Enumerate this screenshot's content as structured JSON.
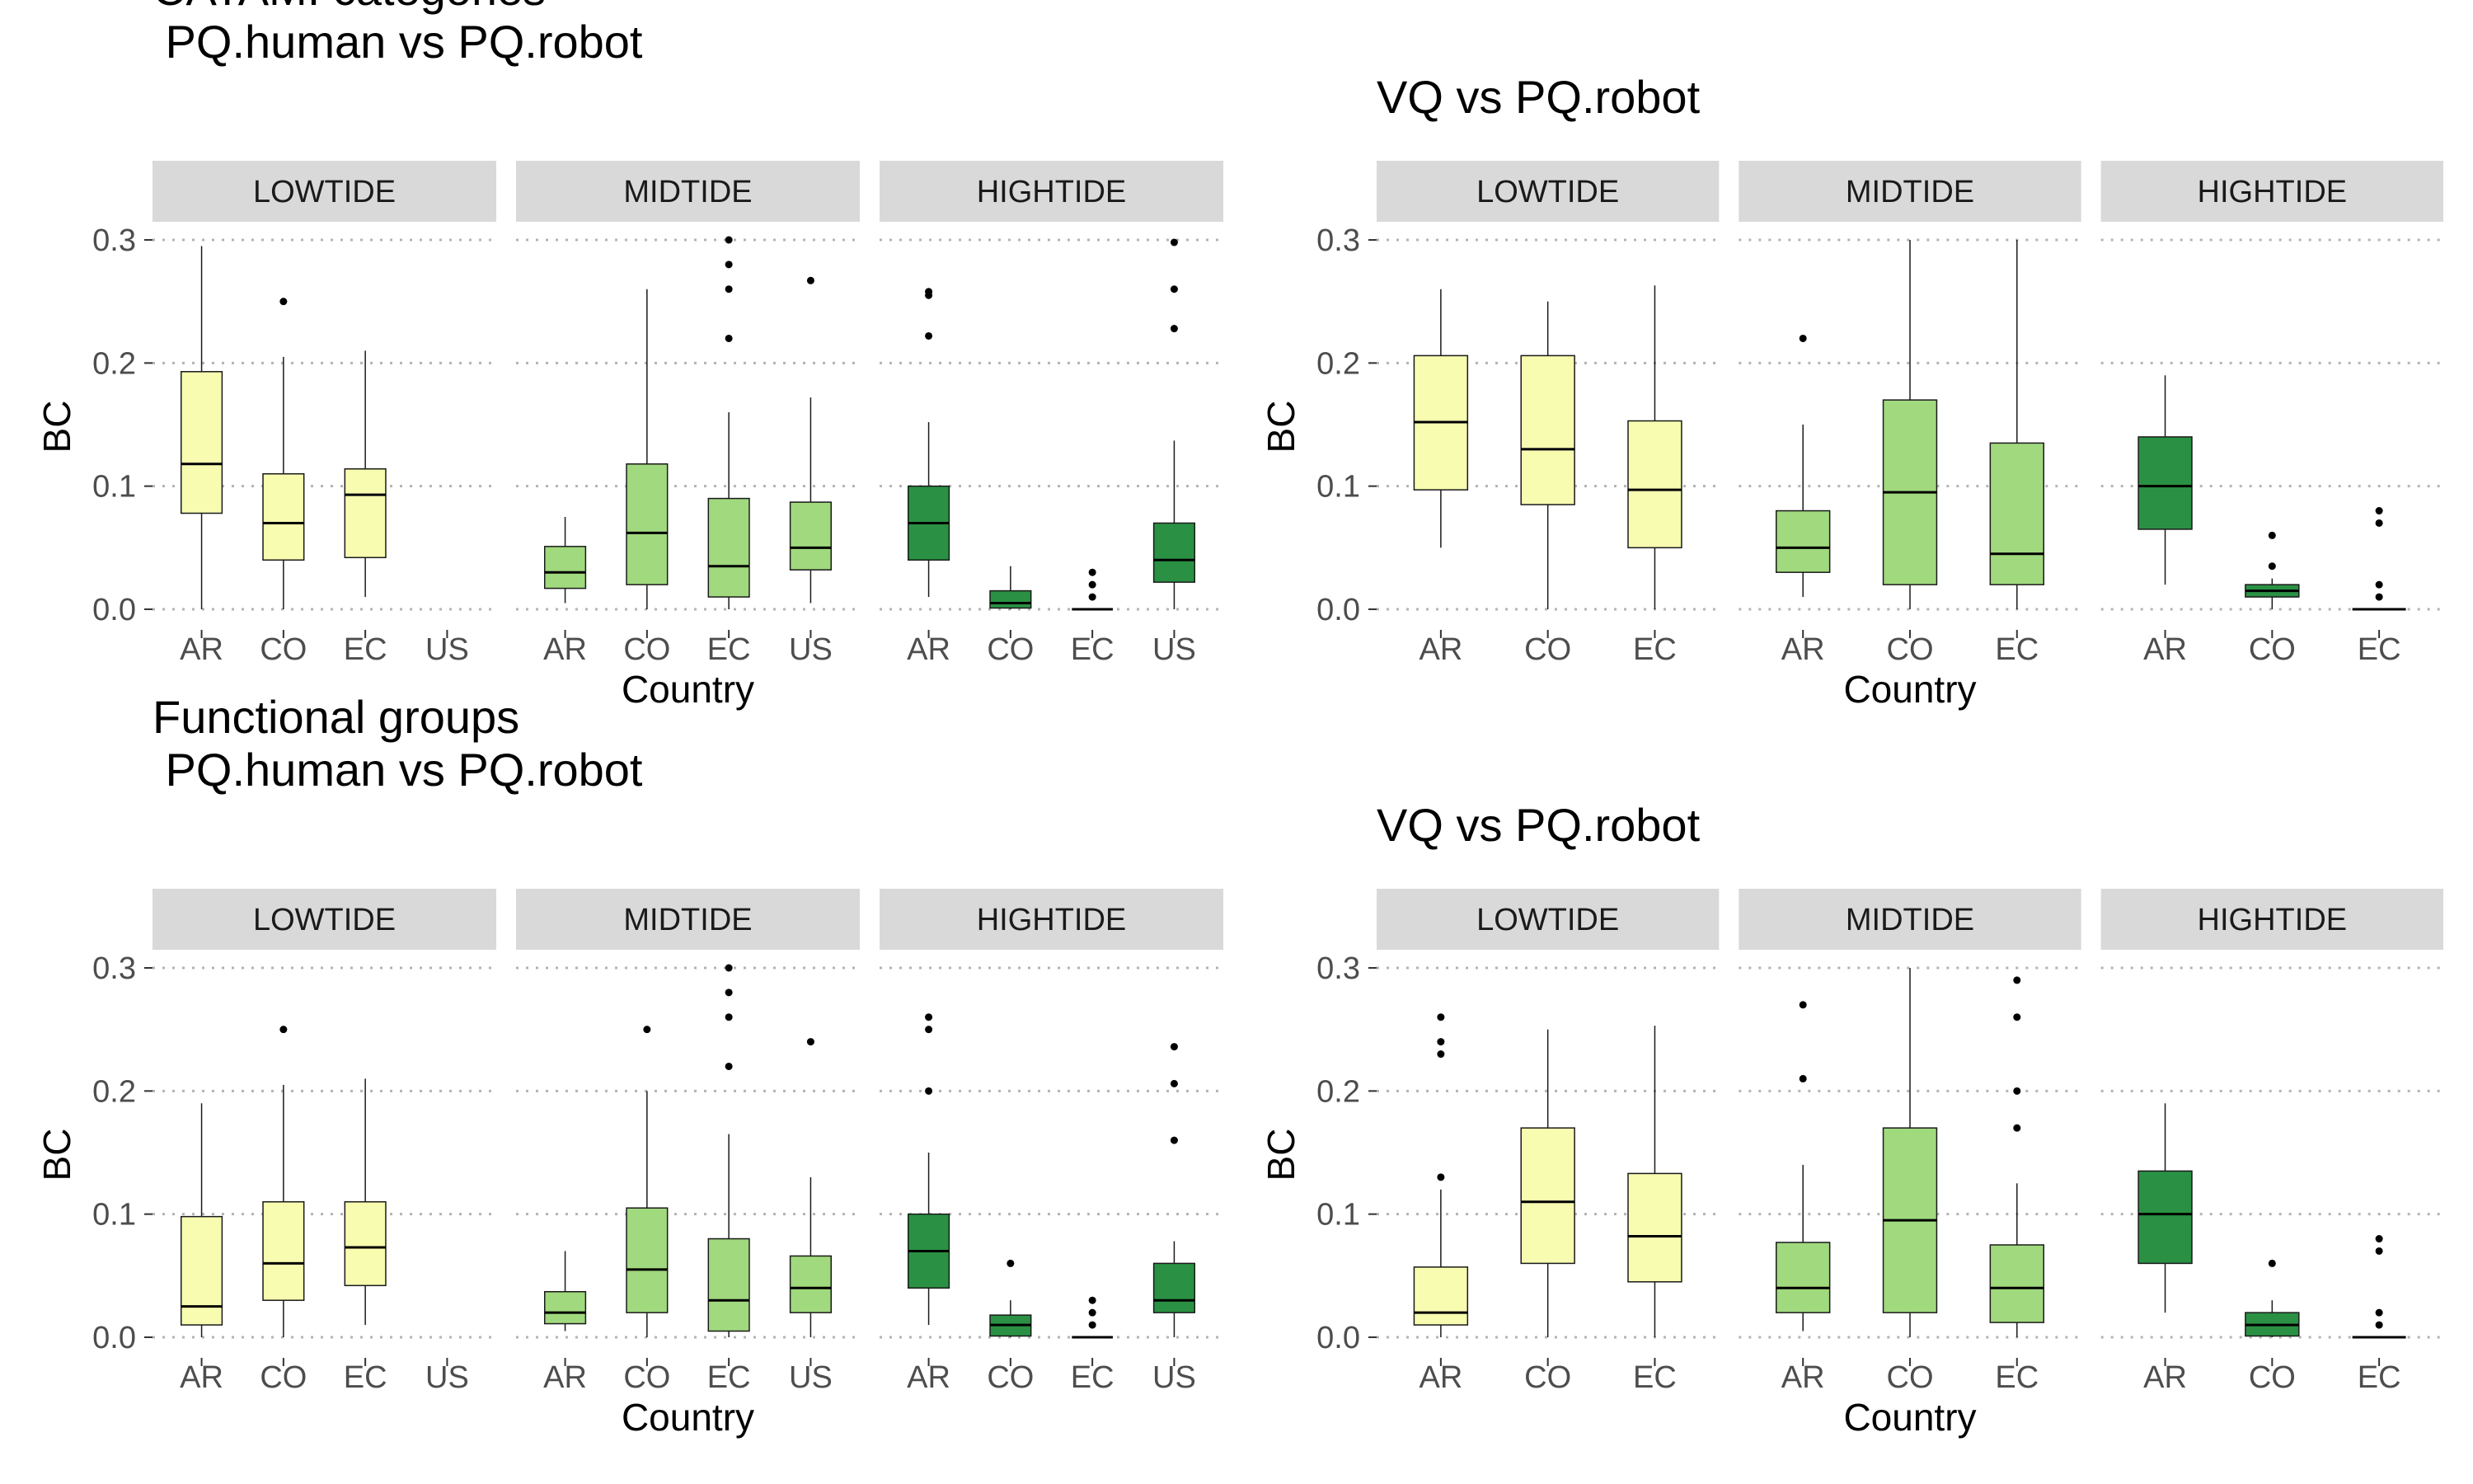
{
  "chart_data": [
    {
      "type": "boxplot",
      "title": "CATAMI categories\n PQ.human vs PQ.robot",
      "xlabel": "Country",
      "ylabel": "BC",
      "ylim": [
        0,
        0.3
      ],
      "yticks": [
        0.0,
        0.1,
        0.2,
        0.3
      ],
      "facets": [
        {
          "label": "LOWTIDE",
          "categories": [
            "AR",
            "CO",
            "EC",
            "US"
          ],
          "boxes": [
            {
              "x": "AR",
              "min": 0.0,
              "q1": 0.078,
              "median": 0.118,
              "q3": 0.193,
              "max": 0.295,
              "outliers": []
            },
            {
              "x": "CO",
              "min": 0.0,
              "q1": 0.04,
              "median": 0.07,
              "q3": 0.11,
              "max": 0.205,
              "outliers": [
                0.25
              ]
            },
            {
              "x": "EC",
              "min": 0.01,
              "q1": 0.042,
              "median": 0.093,
              "q3": 0.114,
              "max": 0.21,
              "outliers": []
            }
          ]
        },
        {
          "label": "MIDTIDE",
          "categories": [
            "AR",
            "CO",
            "EC",
            "US"
          ],
          "boxes": [
            {
              "x": "AR",
              "min": 0.005,
              "q1": 0.017,
              "median": 0.03,
              "q3": 0.051,
              "max": 0.075,
              "outliers": []
            },
            {
              "x": "CO",
              "min": 0.0,
              "q1": 0.02,
              "median": 0.062,
              "q3": 0.118,
              "max": 0.26,
              "outliers": []
            },
            {
              "x": "EC",
              "min": 0.0,
              "q1": 0.01,
              "median": 0.035,
              "q3": 0.09,
              "max": 0.16,
              "outliers": [
                0.22,
                0.26,
                0.28,
                0.3
              ]
            },
            {
              "x": "US",
              "min": 0.005,
              "q1": 0.032,
              "median": 0.05,
              "q3": 0.087,
              "max": 0.172,
              "outliers": [
                0.267
              ]
            }
          ]
        },
        {
          "label": "HIGHTIDE",
          "categories": [
            "AR",
            "CO",
            "EC",
            "US"
          ],
          "boxes": [
            {
              "x": "AR",
              "min": 0.01,
              "q1": 0.04,
              "median": 0.07,
              "q3": 0.1,
              "max": 0.152,
              "outliers": [
                0.222,
                0.255,
                0.258
              ]
            },
            {
              "x": "CO",
              "min": 0.0,
              "q1": 0.001,
              "median": 0.005,
              "q3": 0.015,
              "max": 0.035,
              "outliers": []
            },
            {
              "x": "EC",
              "min": 0.0,
              "q1": 0.0,
              "median": 0.0,
              "q3": 0.0,
              "max": 0.0,
              "outliers": [
                0.01,
                0.02,
                0.03
              ]
            },
            {
              "x": "US",
              "min": 0.0,
              "q1": 0.022,
              "median": 0.04,
              "q3": 0.07,
              "max": 0.137,
              "outliers": [
                0.228,
                0.26,
                0.298
              ]
            }
          ]
        }
      ]
    },
    {
      "type": "boxplot",
      "title": "VQ vs PQ.robot",
      "xlabel": "Country",
      "ylabel": "BC",
      "ylim": [
        0,
        0.3
      ],
      "yticks": [
        0.0,
        0.1,
        0.2,
        0.3
      ],
      "facets": [
        {
          "label": "LOWTIDE",
          "categories": [
            "AR",
            "CO",
            "EC"
          ],
          "boxes": [
            {
              "x": "AR",
              "min": 0.05,
              "q1": 0.097,
              "median": 0.152,
              "q3": 0.206,
              "max": 0.26,
              "outliers": []
            },
            {
              "x": "CO",
              "min": 0.0,
              "q1": 0.085,
              "median": 0.13,
              "q3": 0.206,
              "max": 0.25,
              "outliers": []
            },
            {
              "x": "EC",
              "min": 0.0,
              "q1": 0.05,
              "median": 0.097,
              "q3": 0.153,
              "max": 0.263,
              "outliers": []
            }
          ]
        },
        {
          "label": "MIDTIDE",
          "categories": [
            "AR",
            "CO",
            "EC"
          ],
          "boxes": [
            {
              "x": "AR",
              "min": 0.01,
              "q1": 0.03,
              "median": 0.05,
              "q3": 0.08,
              "max": 0.15,
              "outliers": [
                0.22
              ]
            },
            {
              "x": "CO",
              "min": 0.0,
              "q1": 0.02,
              "median": 0.095,
              "q3": 0.17,
              "max": 0.3,
              "outliers": []
            },
            {
              "x": "EC",
              "min": 0.0,
              "q1": 0.02,
              "median": 0.045,
              "q3": 0.135,
              "max": 0.3,
              "outliers": []
            }
          ]
        },
        {
          "label": "HIGHTIDE",
          "categories": [
            "AR",
            "CO",
            "EC"
          ],
          "boxes": [
            {
              "x": "AR",
              "min": 0.02,
              "q1": 0.065,
              "median": 0.1,
              "q3": 0.14,
              "max": 0.19,
              "outliers": []
            },
            {
              "x": "CO",
              "min": 0.0,
              "q1": 0.01,
              "median": 0.015,
              "q3": 0.02,
              "max": 0.025,
              "outliers": [
                0.035,
                0.06
              ]
            },
            {
              "x": "EC",
              "min": 0.0,
              "q1": 0.0,
              "median": 0.0,
              "q3": 0.0,
              "max": 0.0,
              "outliers": [
                0.01,
                0.02,
                0.07,
                0.08
              ]
            }
          ]
        }
      ]
    },
    {
      "type": "boxplot",
      "title": "Functional groups\n PQ.human vs PQ.robot",
      "xlabel": "Country",
      "ylabel": "BC",
      "ylim": [
        0,
        0.3
      ],
      "yticks": [
        0.0,
        0.1,
        0.2,
        0.3
      ],
      "facets": [
        {
          "label": "LOWTIDE",
          "categories": [
            "AR",
            "CO",
            "EC",
            "US"
          ],
          "boxes": [
            {
              "x": "AR",
              "min": 0.0,
              "q1": 0.01,
              "median": 0.025,
              "q3": 0.098,
              "max": 0.19,
              "outliers": []
            },
            {
              "x": "CO",
              "min": 0.0,
              "q1": 0.03,
              "median": 0.06,
              "q3": 0.11,
              "max": 0.205,
              "outliers": [
                0.25
              ]
            },
            {
              "x": "EC",
              "min": 0.01,
              "q1": 0.042,
              "median": 0.073,
              "q3": 0.11,
              "max": 0.21,
              "outliers": []
            }
          ]
        },
        {
          "label": "MIDTIDE",
          "categories": [
            "AR",
            "CO",
            "EC",
            "US"
          ],
          "boxes": [
            {
              "x": "AR",
              "min": 0.005,
              "q1": 0.011,
              "median": 0.02,
              "q3": 0.037,
              "max": 0.07,
              "outliers": []
            },
            {
              "x": "CO",
              "min": 0.0,
              "q1": 0.02,
              "median": 0.055,
              "q3": 0.105,
              "max": 0.2,
              "outliers": [
                0.25
              ]
            },
            {
              "x": "EC",
              "min": 0.0,
              "q1": 0.005,
              "median": 0.03,
              "q3": 0.08,
              "max": 0.165,
              "outliers": [
                0.22,
                0.26,
                0.28,
                0.3
              ]
            },
            {
              "x": "US",
              "min": 0.0,
              "q1": 0.02,
              "median": 0.04,
              "q3": 0.066,
              "max": 0.13,
              "outliers": [
                0.24
              ]
            }
          ]
        },
        {
          "label": "HIGHTIDE",
          "categories": [
            "AR",
            "CO",
            "EC",
            "US"
          ],
          "boxes": [
            {
              "x": "AR",
              "min": 0.01,
              "q1": 0.04,
              "median": 0.07,
              "q3": 0.1,
              "max": 0.15,
              "outliers": [
                0.2,
                0.25,
                0.26
              ]
            },
            {
              "x": "CO",
              "min": 0.0,
              "q1": 0.001,
              "median": 0.01,
              "q3": 0.018,
              "max": 0.03,
              "outliers": [
                0.06
              ]
            },
            {
              "x": "EC",
              "min": 0.0,
              "q1": 0.0,
              "median": 0.0,
              "q3": 0.0,
              "max": 0.0,
              "outliers": [
                0.01,
                0.02,
                0.03
              ]
            },
            {
              "x": "US",
              "min": 0.0,
              "q1": 0.02,
              "median": 0.03,
              "q3": 0.06,
              "max": 0.078,
              "outliers": [
                0.16,
                0.206,
                0.236
              ]
            }
          ]
        }
      ]
    },
    {
      "type": "boxplot",
      "title": "VQ vs PQ.robot",
      "xlabel": "Country",
      "ylabel": "BC",
      "ylim": [
        0,
        0.3
      ],
      "yticks": [
        0.0,
        0.1,
        0.2,
        0.3
      ],
      "facets": [
        {
          "label": "LOWTIDE",
          "categories": [
            "AR",
            "CO",
            "EC"
          ],
          "boxes": [
            {
              "x": "AR",
              "min": 0.0,
              "q1": 0.01,
              "median": 0.02,
              "q3": 0.057,
              "max": 0.12,
              "outliers": [
                0.13,
                0.23,
                0.24,
                0.26
              ]
            },
            {
              "x": "CO",
              "min": 0.0,
              "q1": 0.06,
              "median": 0.11,
              "q3": 0.17,
              "max": 0.25,
              "outliers": []
            },
            {
              "x": "EC",
              "min": 0.0,
              "q1": 0.045,
              "median": 0.082,
              "q3": 0.133,
              "max": 0.253,
              "outliers": []
            }
          ]
        },
        {
          "label": "MIDTIDE",
          "categories": [
            "AR",
            "CO",
            "EC"
          ],
          "boxes": [
            {
              "x": "AR",
              "min": 0.005,
              "q1": 0.02,
              "median": 0.04,
              "q3": 0.077,
              "max": 0.14,
              "outliers": [
                0.21,
                0.27
              ]
            },
            {
              "x": "CO",
              "min": 0.0,
              "q1": 0.02,
              "median": 0.095,
              "q3": 0.17,
              "max": 0.3,
              "outliers": []
            },
            {
              "x": "EC",
              "min": 0.0,
              "q1": 0.012,
              "median": 0.04,
              "q3": 0.075,
              "max": 0.125,
              "outliers": [
                0.17,
                0.2,
                0.26,
                0.29
              ]
            }
          ]
        },
        {
          "label": "HIGHTIDE",
          "categories": [
            "AR",
            "CO",
            "EC"
          ],
          "boxes": [
            {
              "x": "AR",
              "min": 0.02,
              "q1": 0.06,
              "median": 0.1,
              "q3": 0.135,
              "max": 0.19,
              "outliers": []
            },
            {
              "x": "CO",
              "min": 0.0,
              "q1": 0.001,
              "median": 0.01,
              "q3": 0.02,
              "max": 0.03,
              "outliers": [
                0.06
              ]
            },
            {
              "x": "EC",
              "min": 0.0,
              "q1": 0.0,
              "median": 0.0,
              "q3": 0.0,
              "max": 0.0,
              "outliers": [
                0.01,
                0.02,
                0.07,
                0.08
              ]
            }
          ]
        }
      ]
    }
  ],
  "colors": {
    "LOWTIDE": "#f7fcb0",
    "MIDTIDE": "#a1d97e",
    "HIGHTIDE": "#2a9144",
    "strip_background": "#d9d9d9",
    "gridline": "#b3b3b3",
    "box_outline": "#1a1a1a",
    "tick_label": "#4d4d4d"
  }
}
